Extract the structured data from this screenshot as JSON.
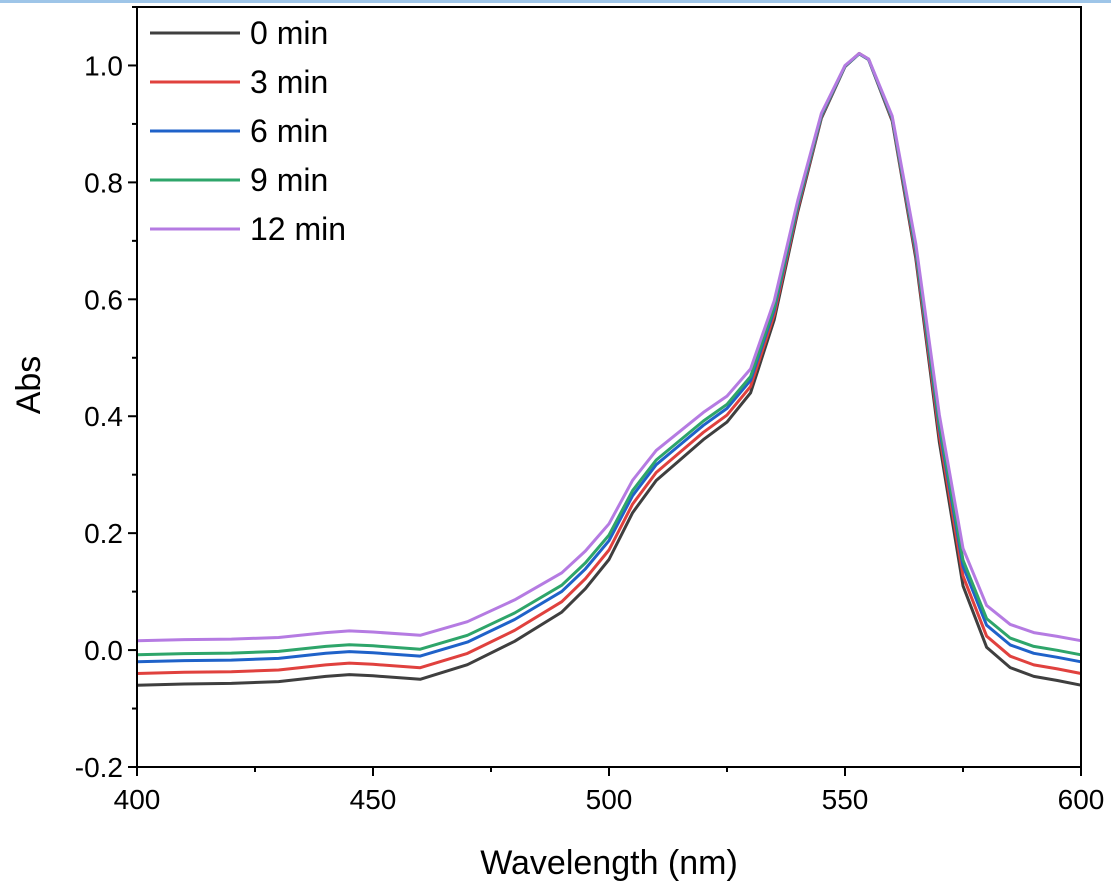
{
  "chart_data": {
    "type": "line",
    "title": "",
    "xlabel": "Wavelength (nm)",
    "ylabel": "Abs",
    "xlim": [
      400,
      600
    ],
    "ylim": [
      -0.2,
      1.1
    ],
    "xticks": [
      400,
      450,
      500,
      550,
      600
    ],
    "xtick_labels": [
      "400",
      "450",
      "500",
      "550",
      "600"
    ],
    "yticks": [
      -0.2,
      0.0,
      0.2,
      0.4,
      0.6,
      0.8,
      1.0
    ],
    "ytick_labels": [
      "-0.2",
      "0.0",
      "0.2",
      "0.4",
      "0.6",
      "0.8",
      "1.0"
    ],
    "grid": false,
    "legend_position": "top-left",
    "x": [
      400,
      410,
      420,
      430,
      440,
      445,
      450,
      460,
      470,
      480,
      490,
      495,
      500,
      505,
      510,
      515,
      520,
      525,
      530,
      535,
      540,
      545,
      550,
      553,
      555,
      560,
      565,
      570,
      575,
      580,
      585,
      590,
      595,
      600
    ],
    "base_curve": [
      0,
      0.002,
      0.003,
      0.006,
      0.015,
      0.018,
      0.016,
      0.01,
      0.035,
      0.075,
      0.125,
      0.165,
      0.215,
      0.295,
      0.35,
      0.385,
      0.42,
      0.45,
      0.5,
      0.625,
      0.81,
      0.97,
      1.058,
      1.08,
      1.07,
      0.965,
      0.73,
      0.415,
      0.17,
      0.065,
      0.03,
      0.015,
      0.008,
      0
    ],
    "series": [
      {
        "name": "0 min",
        "color": "#3f3f3f",
        "offset": -0.06,
        "scale": 1.0
      },
      {
        "name": "3 min",
        "color": "#e0413e",
        "offset": -0.04,
        "scale": 0.982
      },
      {
        "name": "6 min",
        "color": "#1f62c9",
        "offset": -0.02,
        "scale": 0.963
      },
      {
        "name": "9 min",
        "color": "#2ea56a",
        "offset": -0.008,
        "scale": 0.952
      },
      {
        "name": "12 min",
        "color": "#b57be2",
        "offset": 0.016,
        "scale": 0.93
      }
    ]
  }
}
